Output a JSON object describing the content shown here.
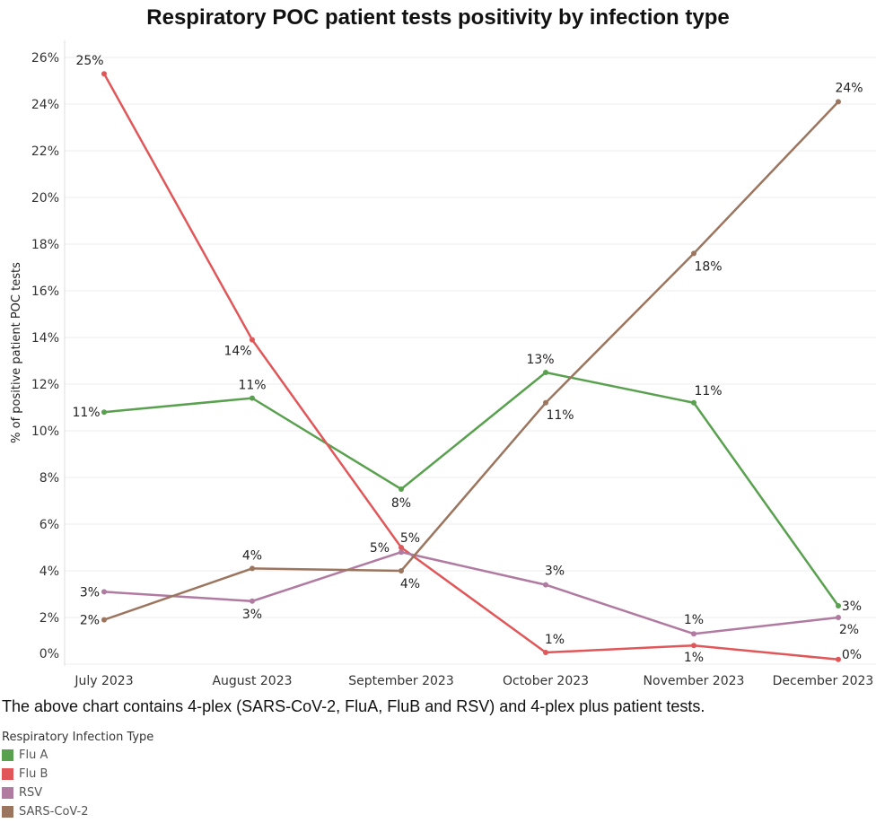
{
  "chart_data": {
    "type": "line",
    "title": "Respiratory POC patient tests positivity by infection type",
    "xlabel": "",
    "ylabel": "% of positive patient POC tests",
    "categories": [
      "July 2023",
      "August 2023",
      "September 2023",
      "October 2023",
      "November 2023",
      "December 2023"
    ],
    "ylim": [
      0,
      26
    ],
    "yticks": [
      "0%",
      "2%",
      "4%",
      "6%",
      "8%",
      "10%",
      "12%",
      "14%",
      "16%",
      "18%",
      "20%",
      "22%",
      "24%",
      "26%"
    ],
    "grid": true,
    "series": [
      {
        "name": "Flu A",
        "color": "#59a14f",
        "values": [
          10.8,
          11.4,
          7.5,
          12.5,
          11.2,
          2.5
        ],
        "labels": [
          "11%",
          "11%",
          "8%",
          "13%",
          "11%",
          "3%"
        ]
      },
      {
        "name": "Flu B",
        "color": "#e15759",
        "values": [
          25.3,
          13.9,
          5.0,
          0.5,
          0.8,
          0.2
        ],
        "labels": [
          "25%",
          "14%",
          "5%",
          "1%",
          "1%",
          "0%"
        ]
      },
      {
        "name": "RSV",
        "color": "#b07aa1",
        "values": [
          3.1,
          2.7,
          4.8,
          3.4,
          1.3,
          2.0
        ],
        "labels": [
          "3%",
          "3%",
          "5%",
          "3%",
          "1%",
          "2%"
        ]
      },
      {
        "name": "SARS-CoV-2",
        "color": "#9c755f",
        "values": [
          1.9,
          4.1,
          4.0,
          11.2,
          17.6,
          24.1
        ],
        "labels": [
          "2%",
          "4%",
          "4%",
          "11%",
          "18%",
          "24%"
        ]
      }
    ],
    "legend_position": "bottom-left"
  },
  "caption": "The above chart contains 4-plex (SARS-CoV-2, FluA, FluB and RSV) and 4-plex plus patient tests.",
  "legend_title": "Respiratory Infection Type"
}
